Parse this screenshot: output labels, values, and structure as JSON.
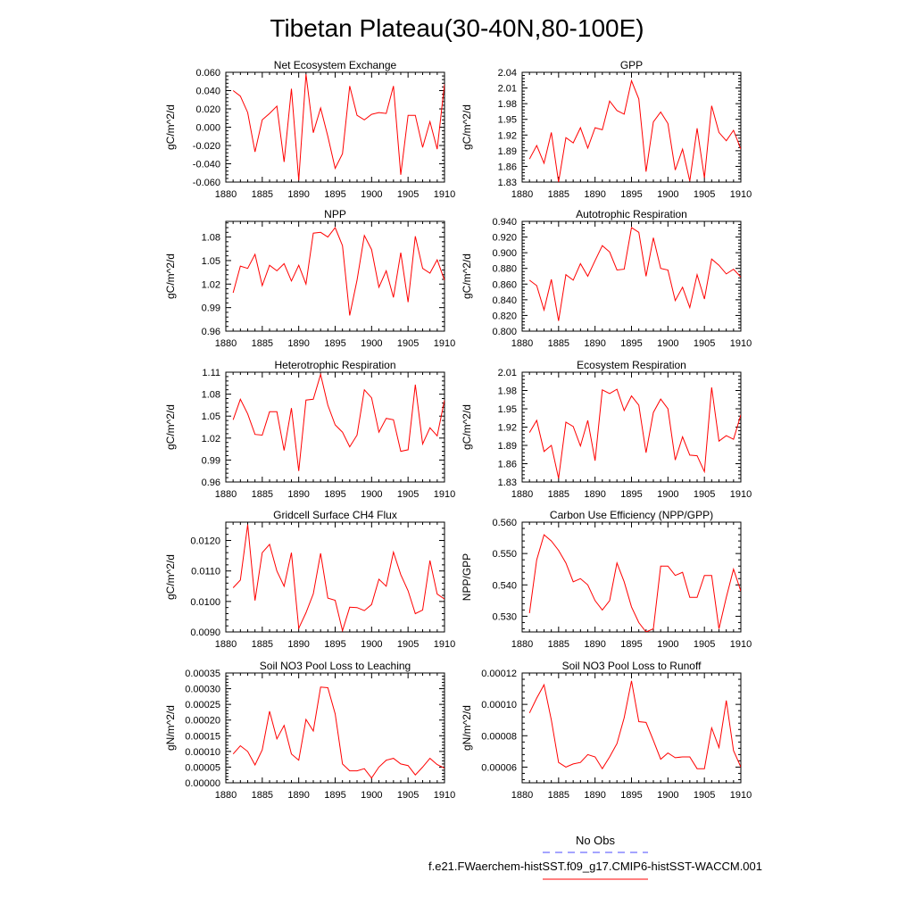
{
  "figure": {
    "title": "Tibetan Plateau(30-40N,80-100E)",
    "legend": [
      {
        "label": "No Obs",
        "color": "#4a4aff",
        "style": "dashed"
      },
      {
        "label": "f.e21.FWaerchem-histSST.f09_g17.CMIP6-histSST-WACCM.001",
        "color": "#ff0000",
        "style": "solid"
      }
    ]
  },
  "chart_data": [
    {
      "type": "line",
      "title": "Net Ecosystem Exchange",
      "ylabel": "gC/m^2/d",
      "xlim": [
        1880,
        1910
      ],
      "xticks": [
        "1880",
        "1885",
        "1890",
        "1895",
        "1900",
        "1905",
        "1910"
      ],
      "ylim": [
        -0.06,
        0.06
      ],
      "yticks": [
        "-0.060",
        "-0.040",
        "-0.020",
        "0.000",
        "0.020",
        "0.040",
        "0.060"
      ],
      "series": [
        {
          "color": "#ff0000",
          "x": [
            1881,
            1882,
            1883,
            1884,
            1885,
            1886,
            1887,
            1888,
            1889,
            1890,
            1891,
            1892,
            1893,
            1894,
            1895,
            1896,
            1897,
            1898,
            1899,
            1900,
            1901,
            1902,
            1903,
            1904,
            1905,
            1906,
            1907,
            1908,
            1909,
            1910
          ],
          "y": [
            0.04,
            0.034,
            0.016,
            -0.027,
            0.008,
            0.015,
            0.023,
            -0.038,
            0.042,
            -0.058,
            0.058,
            -0.006,
            0.021,
            -0.01,
            -0.045,
            -0.029,
            0.045,
            0.013,
            0.008,
            0.014,
            0.016,
            0.015,
            0.045,
            -0.052,
            0.013,
            0.013,
            -0.022,
            0.006,
            -0.024,
            0.047
          ]
        }
      ]
    },
    {
      "type": "line",
      "title": "GPP",
      "ylabel": "gC/m^2/d",
      "xlim": [
        1880,
        1910
      ],
      "xticks": [
        "1880",
        "1885",
        "1890",
        "1895",
        "1900",
        "1905",
        "1910"
      ],
      "ylim": [
        1.83,
        2.04
      ],
      "yticks": [
        "1.83",
        "1.86",
        "1.89",
        "1.92",
        "1.95",
        "1.98",
        "2.01",
        "2.04"
      ],
      "series": [
        {
          "color": "#ff0000",
          "x": [
            1881,
            1882,
            1883,
            1884,
            1885,
            1886,
            1887,
            1888,
            1889,
            1890,
            1891,
            1892,
            1893,
            1894,
            1895,
            1896,
            1897,
            1898,
            1899,
            1900,
            1901,
            1902,
            1903,
            1904,
            1905,
            1906,
            1907,
            1908,
            1909,
            1910
          ],
          "y": [
            1.874,
            1.9,
            1.866,
            1.925,
            1.83,
            1.915,
            1.905,
            1.934,
            1.895,
            1.934,
            1.93,
            1.985,
            1.967,
            1.96,
            2.024,
            1.989,
            1.85,
            1.945,
            1.964,
            1.942,
            1.853,
            1.893,
            1.832,
            1.933,
            1.838,
            1.976,
            1.925,
            1.909,
            1.929,
            1.893
          ]
        }
      ]
    },
    {
      "type": "line",
      "title": "NPP",
      "ylabel": "gC/m^2/d",
      "xlim": [
        1880,
        1910
      ],
      "xticks": [
        "1880",
        "1885",
        "1890",
        "1895",
        "1900",
        "1905",
        "1910"
      ],
      "ylim": [
        0.96,
        1.1
      ],
      "yticks": [
        "0.96",
        "0.99",
        "1.02",
        "1.05",
        "1.08"
      ],
      "series": [
        {
          "color": "#ff0000",
          "x": [
            1881,
            1882,
            1883,
            1884,
            1885,
            1886,
            1887,
            1888,
            1889,
            1890,
            1891,
            1892,
            1893,
            1894,
            1895,
            1896,
            1897,
            1898,
            1899,
            1900,
            1901,
            1902,
            1903,
            1904,
            1905,
            1906,
            1907,
            1908,
            1909,
            1910
          ],
          "y": [
            1.009,
            1.043,
            1.04,
            1.058,
            1.018,
            1.044,
            1.037,
            1.046,
            1.024,
            1.044,
            1.02,
            1.085,
            1.086,
            1.08,
            1.092,
            1.069,
            0.98,
            1.025,
            1.082,
            1.064,
            1.016,
            1.037,
            1.003,
            1.06,
            0.997,
            1.081,
            1.04,
            1.034,
            1.051,
            1.025
          ]
        }
      ]
    },
    {
      "type": "line",
      "title": "Autotrophic Respiration",
      "ylabel": "gC/m^2/d",
      "xlim": [
        1880,
        1910
      ],
      "xticks": [
        "1880",
        "1885",
        "1890",
        "1895",
        "1900",
        "1905",
        "1910"
      ],
      "ylim": [
        0.8,
        0.94
      ],
      "yticks": [
        "0.800",
        "0.820",
        "0.840",
        "0.860",
        "0.880",
        "0.900",
        "0.920",
        "0.940"
      ],
      "series": [
        {
          "color": "#ff0000",
          "x": [
            1881,
            1882,
            1883,
            1884,
            1885,
            1886,
            1887,
            1888,
            1889,
            1890,
            1891,
            1892,
            1893,
            1894,
            1895,
            1896,
            1897,
            1898,
            1899,
            1900,
            1901,
            1902,
            1903,
            1904,
            1905,
            1906,
            1907,
            1908,
            1909,
            1910
          ],
          "y": [
            0.865,
            0.858,
            0.827,
            0.866,
            0.813,
            0.872,
            0.865,
            0.886,
            0.87,
            0.89,
            0.909,
            0.901,
            0.878,
            0.879,
            0.932,
            0.926,
            0.87,
            0.919,
            0.88,
            0.878,
            0.839,
            0.856,
            0.83,
            0.872,
            0.841,
            0.892,
            0.884,
            0.873,
            0.879,
            0.869
          ]
        }
      ]
    },
    {
      "type": "line",
      "title": "Heterotrophic Respiration",
      "ylabel": "gC/m^2/d",
      "xlim": [
        1880,
        1910
      ],
      "xticks": [
        "1880",
        "1885",
        "1890",
        "1895",
        "1900",
        "1905",
        "1910"
      ],
      "ylim": [
        0.96,
        1.11
      ],
      "yticks": [
        "0.96",
        "0.99",
        "1.02",
        "1.05",
        "1.08",
        "1.11"
      ],
      "series": [
        {
          "color": "#ff0000",
          "x": [
            1881,
            1882,
            1883,
            1884,
            1885,
            1886,
            1887,
            1888,
            1889,
            1890,
            1891,
            1892,
            1893,
            1894,
            1895,
            1896,
            1897,
            1898,
            1899,
            1900,
            1901,
            1902,
            1903,
            1904,
            1905,
            1906,
            1907,
            1908,
            1909,
            1910
          ],
          "y": [
            1.045,
            1.073,
            1.053,
            1.025,
            1.024,
            1.056,
            1.056,
            1.003,
            1.061,
            0.975,
            1.072,
            1.073,
            1.107,
            1.065,
            1.038,
            1.028,
            1.008,
            1.024,
            1.086,
            1.075,
            1.028,
            1.047,
            1.045,
            1.002,
            1.004,
            1.093,
            1.012,
            1.034,
            1.023,
            1.072
          ]
        }
      ]
    },
    {
      "type": "line",
      "title": "Ecosystem Respiration",
      "ylabel": "gC/m^2/d",
      "xlim": [
        1880,
        1910
      ],
      "xticks": [
        "1880",
        "1885",
        "1890",
        "1895",
        "1900",
        "1905",
        "1910"
      ],
      "ylim": [
        1.83,
        2.01
      ],
      "yticks": [
        "1.83",
        "1.86",
        "1.89",
        "1.92",
        "1.95",
        "1.98",
        "2.01"
      ],
      "series": [
        {
          "color": "#ff0000",
          "x": [
            1881,
            1882,
            1883,
            1884,
            1885,
            1886,
            1887,
            1888,
            1889,
            1890,
            1891,
            1892,
            1893,
            1894,
            1895,
            1896,
            1897,
            1898,
            1899,
            1900,
            1901,
            1902,
            1903,
            1904,
            1905,
            1906,
            1907,
            1908,
            1909,
            1910
          ],
          "y": [
            1.911,
            1.931,
            1.88,
            1.89,
            1.836,
            1.928,
            1.921,
            1.889,
            1.931,
            1.865,
            1.981,
            1.975,
            1.982,
            1.947,
            1.971,
            1.956,
            1.878,
            1.944,
            1.966,
            1.95,
            1.866,
            1.904,
            1.874,
            1.873,
            1.847,
            1.985,
            1.897,
            1.906,
            1.9,
            1.94
          ]
        }
      ]
    },
    {
      "type": "line",
      "title": "Gridcell Surface CH4 Flux",
      "ylabel": "gC/m^2/d",
      "xlim": [
        1880,
        1910
      ],
      "xticks": [
        "1880",
        "1885",
        "1890",
        "1895",
        "1900",
        "1905",
        "1910"
      ],
      "ylim": [
        0.009,
        0.0126
      ],
      "yticks": [
        "0.0090",
        "0.0100",
        "0.0110",
        "0.0120"
      ],
      "series": [
        {
          "color": "#ff0000",
          "x": [
            1881,
            1882,
            1883,
            1884,
            1885,
            1886,
            1887,
            1888,
            1889,
            1890,
            1891,
            1892,
            1893,
            1894,
            1895,
            1896,
            1897,
            1898,
            1899,
            1900,
            1901,
            1902,
            1903,
            1904,
            1905,
            1906,
            1907,
            1908,
            1909,
            1910
          ],
          "y": [
            0.01045,
            0.0107,
            0.01252,
            0.01003,
            0.0116,
            0.01187,
            0.011,
            0.0105,
            0.0116,
            0.00912,
            0.00963,
            0.01025,
            0.01158,
            0.01011,
            0.01004,
            0.00904,
            0.00981,
            0.0098,
            0.0097,
            0.0099,
            0.01073,
            0.0105,
            0.01162,
            0.01088,
            0.01035,
            0.0096,
            0.00972,
            0.01134,
            0.01024,
            0.01008
          ]
        }
      ]
    },
    {
      "type": "line",
      "title": "Carbon Use Efficiency (NPP/GPP)",
      "ylabel": "NPP/GPP",
      "xlim": [
        1880,
        1910
      ],
      "xticks": [
        "1880",
        "1885",
        "1890",
        "1895",
        "1900",
        "1905",
        "1910"
      ],
      "ylim": [
        0.525,
        0.56
      ],
      "yticks": [
        "0.530",
        "0.540",
        "0.550",
        "0.560"
      ],
      "series": [
        {
          "color": "#ff0000",
          "x": [
            1881,
            1882,
            1883,
            1884,
            1885,
            1886,
            1887,
            1888,
            1889,
            1890,
            1891,
            1892,
            1893,
            1894,
            1895,
            1896,
            1897,
            1898,
            1899,
            1900,
            1901,
            1902,
            1903,
            1904,
            1905,
            1906,
            1907,
            1908,
            1909,
            1910
          ],
          "y": [
            0.531,
            0.548,
            0.556,
            0.554,
            0.551,
            0.547,
            0.541,
            0.542,
            0.54,
            0.535,
            0.532,
            0.535,
            0.547,
            0.541,
            0.533,
            0.528,
            0.525,
            0.526,
            0.546,
            0.546,
            0.543,
            0.544,
            0.536,
            0.536,
            0.543,
            0.543,
            0.526,
            0.536,
            0.545,
            0.538
          ]
        }
      ]
    },
    {
      "type": "line",
      "title": "Soil NO3 Pool Loss to Leaching",
      "ylabel": "gN/m^2/d",
      "xlim": [
        1880,
        1910
      ],
      "xticks": [
        "1880",
        "1885",
        "1890",
        "1895",
        "1900",
        "1905",
        "1910"
      ],
      "ylim": [
        0,
        0.00035
      ],
      "yticks": [
        "0.00000",
        "0.00005",
        "0.00010",
        "0.00015",
        "0.00020",
        "0.00025",
        "0.00030",
        "0.00035"
      ],
      "series": [
        {
          "color": "#ff0000",
          "x": [
            1881,
            1882,
            1883,
            1884,
            1885,
            1886,
            1887,
            1888,
            1889,
            1890,
            1891,
            1892,
            1893,
            1894,
            1895,
            1896,
            1897,
            1898,
            1899,
            1900,
            1901,
            1902,
            1903,
            1904,
            1905,
            1906,
            1907,
            1908,
            1909,
            1910
          ],
          "y": [
            9.2e-05,
            0.000118,
            0.0001,
            5.7e-05,
            0.000105,
            0.000228,
            0.00014,
            0.000183,
            9.2e-05,
            7.2e-05,
            0.000202,
            0.000165,
            0.000305,
            0.000303,
            0.00022,
            6e-05,
            3.8e-05,
            3.8e-05,
            4.5e-05,
            1.5e-05,
            5e-05,
            7.2e-05,
            7.8e-05,
            6e-05,
            5.5e-05,
            2.5e-05,
            5e-05,
            7.8e-05,
            5.8e-05,
            4.7e-05
          ]
        }
      ]
    },
    {
      "type": "line",
      "title": "Soil NO3 Pool Loss to Runoff",
      "ylabel": "gN/m^2/d",
      "xlim": [
        1880,
        1910
      ],
      "xticks": [
        "1880",
        "1885",
        "1890",
        "1895",
        "1900",
        "1905",
        "1910"
      ],
      "ylim": [
        5e-05,
        0.00012
      ],
      "yticks": [
        "0.00006",
        "0.00008",
        "0.00010",
        "0.00012"
      ],
      "series": [
        {
          "color": "#ff0000",
          "x": [
            1881,
            1882,
            1883,
            1884,
            1885,
            1886,
            1887,
            1888,
            1889,
            1890,
            1891,
            1892,
            1893,
            1894,
            1895,
            1896,
            1897,
            1898,
            1899,
            1900,
            1901,
            1902,
            1903,
            1904,
            1905,
            1906,
            1907,
            1908,
            1909,
            1910
          ],
          "y": [
            9.45e-05,
            0.000104,
            0.0001125,
            9e-05,
            6.3e-05,
            6e-05,
            6.2e-05,
            6.3e-05,
            6.8e-05,
            6.65e-05,
            5.9e-05,
            6.65e-05,
            7.5e-05,
            9.15e-05,
            0.000115,
            8.9e-05,
            8.85e-05,
            7.7e-05,
            6.5e-05,
            6.9e-05,
            6.6e-05,
            6.65e-05,
            6.65e-05,
            5.9e-05,
            5.9e-05,
            8.5e-05,
            7.25e-05,
            0.0001025,
            7.05e-05,
            6e-05
          ]
        }
      ]
    }
  ]
}
